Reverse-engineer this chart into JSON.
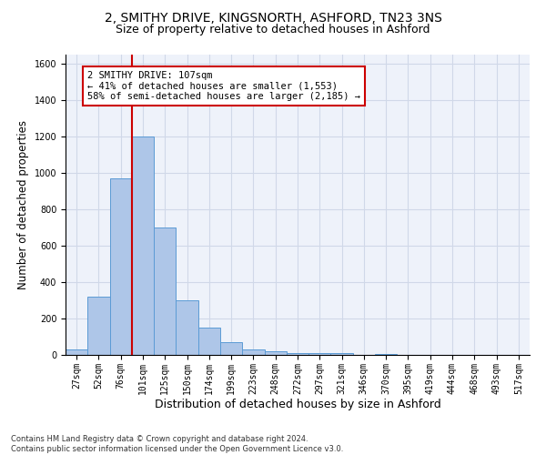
{
  "title_line1": "2, SMITHY DRIVE, KINGSNORTH, ASHFORD, TN23 3NS",
  "title_line2": "Size of property relative to detached houses in Ashford",
  "xlabel": "Distribution of detached houses by size in Ashford",
  "ylabel": "Number of detached properties",
  "footnote": "Contains HM Land Registry data © Crown copyright and database right 2024.\nContains public sector information licensed under the Open Government Licence v3.0.",
  "bar_labels": [
    "27sqm",
    "52sqm",
    "76sqm",
    "101sqm",
    "125sqm",
    "150sqm",
    "174sqm",
    "199sqm",
    "223sqm",
    "248sqm",
    "272sqm",
    "297sqm",
    "321sqm",
    "346sqm",
    "370sqm",
    "395sqm",
    "419sqm",
    "444sqm",
    "468sqm",
    "493sqm",
    "517sqm"
  ],
  "bar_values": [
    30,
    320,
    970,
    1200,
    700,
    300,
    150,
    70,
    30,
    20,
    12,
    10,
    8,
    0,
    5,
    0,
    0,
    0,
    0,
    0,
    0
  ],
  "bar_color": "#aec6e8",
  "bar_edge_color": "#5b9bd5",
  "annotation_box_text": "2 SMITHY DRIVE: 107sqm\n← 41% of detached houses are smaller (1,553)\n58% of semi-detached houses are larger (2,185) →",
  "annotation_box_color": "#ffffff",
  "annotation_box_edge": "#cc0000",
  "vline_x_idx": 3,
  "vline_color": "#cc0000",
  "ylim": [
    0,
    1650
  ],
  "yticks": [
    0,
    200,
    400,
    600,
    800,
    1000,
    1200,
    1400,
    1600
  ],
  "grid_color": "#d0d8e8",
  "bg_color": "#eef2fa",
  "title_fontsize": 10,
  "subtitle_fontsize": 9,
  "tick_fontsize": 7,
  "ylabel_fontsize": 8.5,
  "xlabel_fontsize": 9
}
